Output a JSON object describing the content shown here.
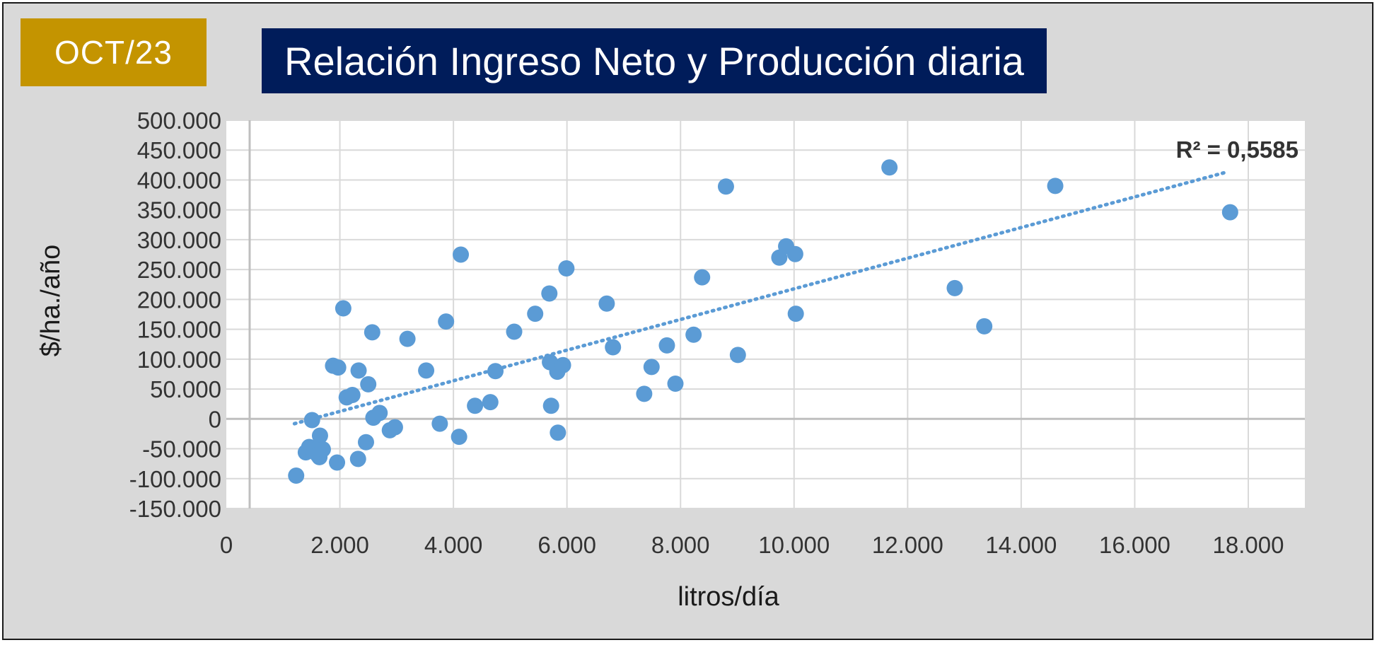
{
  "badge": {
    "label": "OCT/23",
    "color": "#c49400"
  },
  "header": {
    "title": "Relación Ingreso Neto y Producción diaria",
    "color": "#001c5a"
  },
  "chart_data": {
    "type": "scatter",
    "title": "Relación Ingreso Neto y Producción diaria",
    "xlabel": "litros/día",
    "ylabel": "$/ha./año",
    "xlim": [
      0,
      19000
    ],
    "ylim": [
      -150000,
      500000
    ],
    "xticks": [
      0,
      2000,
      4000,
      6000,
      8000,
      10000,
      12000,
      14000,
      16000,
      18000
    ],
    "xtick_labels": [
      "0",
      "2.000",
      "4.000",
      "6.000",
      "8.000",
      "10.000",
      "12.000",
      "14.000",
      "16.000",
      "18.000"
    ],
    "yticks": [
      500000,
      450000,
      400000,
      350000,
      300000,
      250000,
      200000,
      150000,
      100000,
      50000,
      0,
      -50000,
      -100000,
      -150000
    ],
    "ytick_labels": [
      "500.000",
      "450.000",
      "400.000",
      "350.000",
      "300.000",
      "250.000",
      "200.000",
      "150.000",
      "100.000",
      "50.000",
      "0",
      "-50.000",
      "-100.000",
      "-150.000"
    ],
    "grid": true,
    "marker_color": "#5b9bd5",
    "trendline": {
      "type": "linear",
      "style": "dotted",
      "color": "#5b9bd5",
      "x_range": [
        1200,
        17650
      ],
      "y_range": [
        -8000,
        414000
      ],
      "r_squared_label": "R² = 0,5585"
    },
    "points": [
      {
        "x": 1230,
        "y": -95000
      },
      {
        "x": 1400,
        "y": -56000
      },
      {
        "x": 1460,
        "y": -47000
      },
      {
        "x": 1510,
        "y": -2000
      },
      {
        "x": 1560,
        "y": -52000
      },
      {
        "x": 1610,
        "y": -60000
      },
      {
        "x": 1640,
        "y": -64000
      },
      {
        "x": 1650,
        "y": -28000
      },
      {
        "x": 1700,
        "y": -51000
      },
      {
        "x": 1880,
        "y": 89000
      },
      {
        "x": 1950,
        "y": -73000
      },
      {
        "x": 1970,
        "y": 86000
      },
      {
        "x": 2060,
        "y": 185000
      },
      {
        "x": 2120,
        "y": 36000
      },
      {
        "x": 2220,
        "y": 40000
      },
      {
        "x": 2320,
        "y": -67000
      },
      {
        "x": 2330,
        "y": 81000
      },
      {
        "x": 2460,
        "y": -39000
      },
      {
        "x": 2500,
        "y": 58000
      },
      {
        "x": 2570,
        "y": 145000
      },
      {
        "x": 2590,
        "y": 2000
      },
      {
        "x": 2700,
        "y": 10000
      },
      {
        "x": 2880,
        "y": -19000
      },
      {
        "x": 2970,
        "y": -14000
      },
      {
        "x": 3190,
        "y": 134000
      },
      {
        "x": 3520,
        "y": 81000
      },
      {
        "x": 3760,
        "y": -8000
      },
      {
        "x": 3870,
        "y": 163000
      },
      {
        "x": 4100,
        "y": -30000
      },
      {
        "x": 4130,
        "y": 275000
      },
      {
        "x": 4380,
        "y": 22000
      },
      {
        "x": 4650,
        "y": 28000
      },
      {
        "x": 4740,
        "y": 80000
      },
      {
        "x": 5070,
        "y": 146000
      },
      {
        "x": 5440,
        "y": 176000
      },
      {
        "x": 5690,
        "y": 210000
      },
      {
        "x": 5700,
        "y": 95000
      },
      {
        "x": 5720,
        "y": 22000
      },
      {
        "x": 5830,
        "y": 79000
      },
      {
        "x": 5840,
        "y": -23000
      },
      {
        "x": 5930,
        "y": 90000
      },
      {
        "x": 5990,
        "y": 252000
      },
      {
        "x": 6700,
        "y": 193000
      },
      {
        "x": 6810,
        "y": 120000
      },
      {
        "x": 7360,
        "y": 42000
      },
      {
        "x": 7490,
        "y": 87000
      },
      {
        "x": 7760,
        "y": 123000
      },
      {
        "x": 7910,
        "y": 59000
      },
      {
        "x": 8230,
        "y": 141000
      },
      {
        "x": 8380,
        "y": 237000
      },
      {
        "x": 8800,
        "y": 389000
      },
      {
        "x": 9010,
        "y": 107000
      },
      {
        "x": 9740,
        "y": 270000
      },
      {
        "x": 9860,
        "y": 289000
      },
      {
        "x": 10020,
        "y": 276000
      },
      {
        "x": 10030,
        "y": 176000
      },
      {
        "x": 11680,
        "y": 421000
      },
      {
        "x": 12830,
        "y": 219000
      },
      {
        "x": 13350,
        "y": 155000
      },
      {
        "x": 14600,
        "y": 390000
      },
      {
        "x": 17680,
        "y": 346000
      }
    ]
  }
}
